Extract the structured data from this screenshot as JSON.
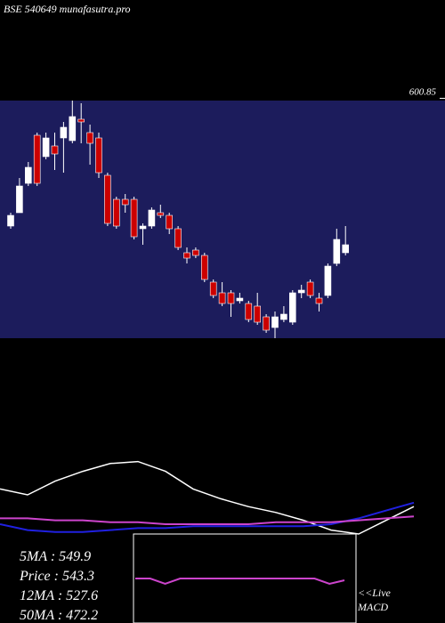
{
  "chart_data": {
    "type": "candlestick",
    "title": "BSE 540649 munafasutra.pro",
    "ylim": [
      511,
      600
    ],
    "yticks": [
      600.85
    ],
    "candles": {
      "open": [
        553,
        558,
        569,
        587,
        579,
        583,
        586,
        585,
        593,
        588,
        586,
        572,
        563,
        563,
        563,
        552,
        553,
        558,
        557,
        552,
        543,
        544,
        542,
        532,
        528,
        528,
        525,
        524,
        523,
        519,
        515,
        518,
        517,
        528,
        532,
        526,
        527,
        539,
        543
      ],
      "close": [
        557,
        568,
        575,
        569,
        586,
        580,
        590,
        594,
        592,
        584,
        573,
        554,
        553,
        561,
        549,
        553,
        559,
        557,
        552,
        545,
        541,
        542,
        533,
        527,
        524,
        524,
        526,
        518,
        517,
        514,
        519,
        520,
        528,
        529,
        527,
        524,
        538,
        548,
        546
      ],
      "high": [
        558,
        571,
        577,
        588,
        588,
        588,
        592,
        600,
        599,
        591,
        588,
        573,
        564,
        565,
        564,
        554,
        560,
        561,
        558,
        553,
        545,
        545,
        543,
        533,
        532,
        529,
        528,
        525,
        528,
        520,
        521,
        523,
        529,
        531,
        533,
        528,
        539,
        552,
        553
      ],
      "low": [
        552,
        558,
        568,
        568,
        578,
        574,
        573,
        584,
        584,
        576,
        571,
        553,
        552,
        558,
        548,
        546,
        552,
        556,
        550,
        544,
        539,
        541,
        532,
        526,
        523,
        519,
        524,
        517,
        516,
        513,
        511,
        517,
        516,
        526,
        526,
        521,
        526,
        538,
        542
      ]
    },
    "up_color": "#ffffff",
    "down_color": "#cc0000",
    "indicator": {
      "ylim": [
        0,
        100
      ],
      "series": [
        {
          "color": "#ffffff",
          "values": [
            23,
            20,
            27,
            32,
            36,
            37,
            32,
            23,
            18,
            14,
            11,
            7,
            2,
            0,
            7,
            14
          ]
        },
        {
          "color": "#2020e0",
          "values": [
            5,
            2,
            1,
            1,
            2,
            3,
            3,
            4,
            4,
            4,
            4,
            4,
            5,
            8,
            12,
            16
          ]
        },
        {
          "color": "#cc44cc",
          "values": [
            8,
            8,
            7,
            7,
            6,
            6,
            5,
            5,
            5,
            5,
            6,
            6,
            6,
            7,
            8,
            9
          ]
        }
      ]
    },
    "macd": {
      "ylim": [
        0,
        100
      ],
      "color": "#cc44cc",
      "values": [
        50,
        50,
        44,
        50,
        50,
        50,
        50,
        50,
        50,
        50,
        50,
        50,
        50,
        44,
        48
      ]
    },
    "stats": [
      "5MA    : 549.9",
      "Price   : 543.3",
      "12MA : 527.6",
      "50MA : 472.2"
    ],
    "live_label": "<<Live",
    "macd_label": "MACD"
  }
}
